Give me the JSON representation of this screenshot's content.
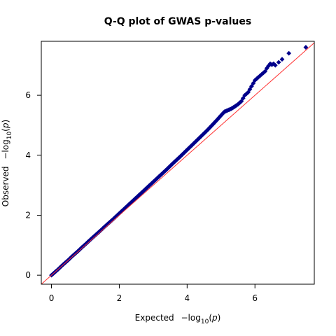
{
  "chart_data": {
    "type": "scatter",
    "title": "Q-Q plot of GWAS p-values",
    "xlabel": {
      "prefix": "Expected",
      "neg": "−log",
      "sub": "10",
      "arg": "(",
      "var": "p",
      "close": ")"
    },
    "ylabel": {
      "prefix": "Observed",
      "neg": "−log",
      "sub": "10",
      "arg": "(",
      "var": "p",
      "close": ")"
    },
    "xlim": [
      -0.3,
      7.75
    ],
    "ylim": [
      -0.3,
      7.8
    ],
    "x_ticks": [
      0,
      2,
      4,
      6
    ],
    "y_ticks": [
      0,
      2,
      4,
      6
    ],
    "reference_line": {
      "slope": 1,
      "intercept": 0,
      "color": "#ff3333"
    },
    "marker_color": "#00008b",
    "grid": false,
    "series": [
      {
        "x": [
          0.0,
          0.1,
          0.2,
          0.3,
          0.4,
          0.5,
          0.6,
          0.7,
          0.8,
          0.9,
          1.0,
          1.2,
          1.4,
          1.6,
          1.8,
          2.0,
          2.2,
          2.4,
          2.6,
          2.8,
          3.0,
          3.2,
          3.4,
          3.6,
          3.8,
          4.0,
          4.2,
          4.4,
          4.6,
          4.8,
          4.9,
          5.0,
          5.1,
          5.2,
          5.3,
          5.4,
          5.5,
          5.6,
          5.65,
          5.7,
          5.75,
          5.8,
          5.85,
          5.9,
          5.95,
          6.0,
          6.05,
          6.1,
          6.15,
          6.2,
          6.25,
          6.3,
          6.35,
          6.4,
          6.45,
          6.5,
          6.55,
          6.6,
          6.7,
          6.8,
          7.0,
          7.5
        ],
        "y": [
          0.0,
          0.1,
          0.2,
          0.31,
          0.41,
          0.51,
          0.62,
          0.72,
          0.82,
          0.93,
          1.03,
          1.24,
          1.44,
          1.65,
          1.85,
          2.06,
          2.27,
          2.48,
          2.69,
          2.9,
          3.11,
          3.32,
          3.53,
          3.75,
          3.96,
          4.18,
          4.4,
          4.62,
          4.84,
          5.08,
          5.2,
          5.33,
          5.45,
          5.5,
          5.55,
          5.62,
          5.7,
          5.8,
          5.9,
          6.0,
          6.05,
          6.1,
          6.2,
          6.3,
          6.4,
          6.5,
          6.55,
          6.6,
          6.65,
          6.7,
          6.75,
          6.8,
          6.9,
          6.98,
          7.05,
          7.02,
          7.05,
          7.0,
          7.1,
          7.2,
          7.4,
          7.6
        ]
      }
    ]
  }
}
